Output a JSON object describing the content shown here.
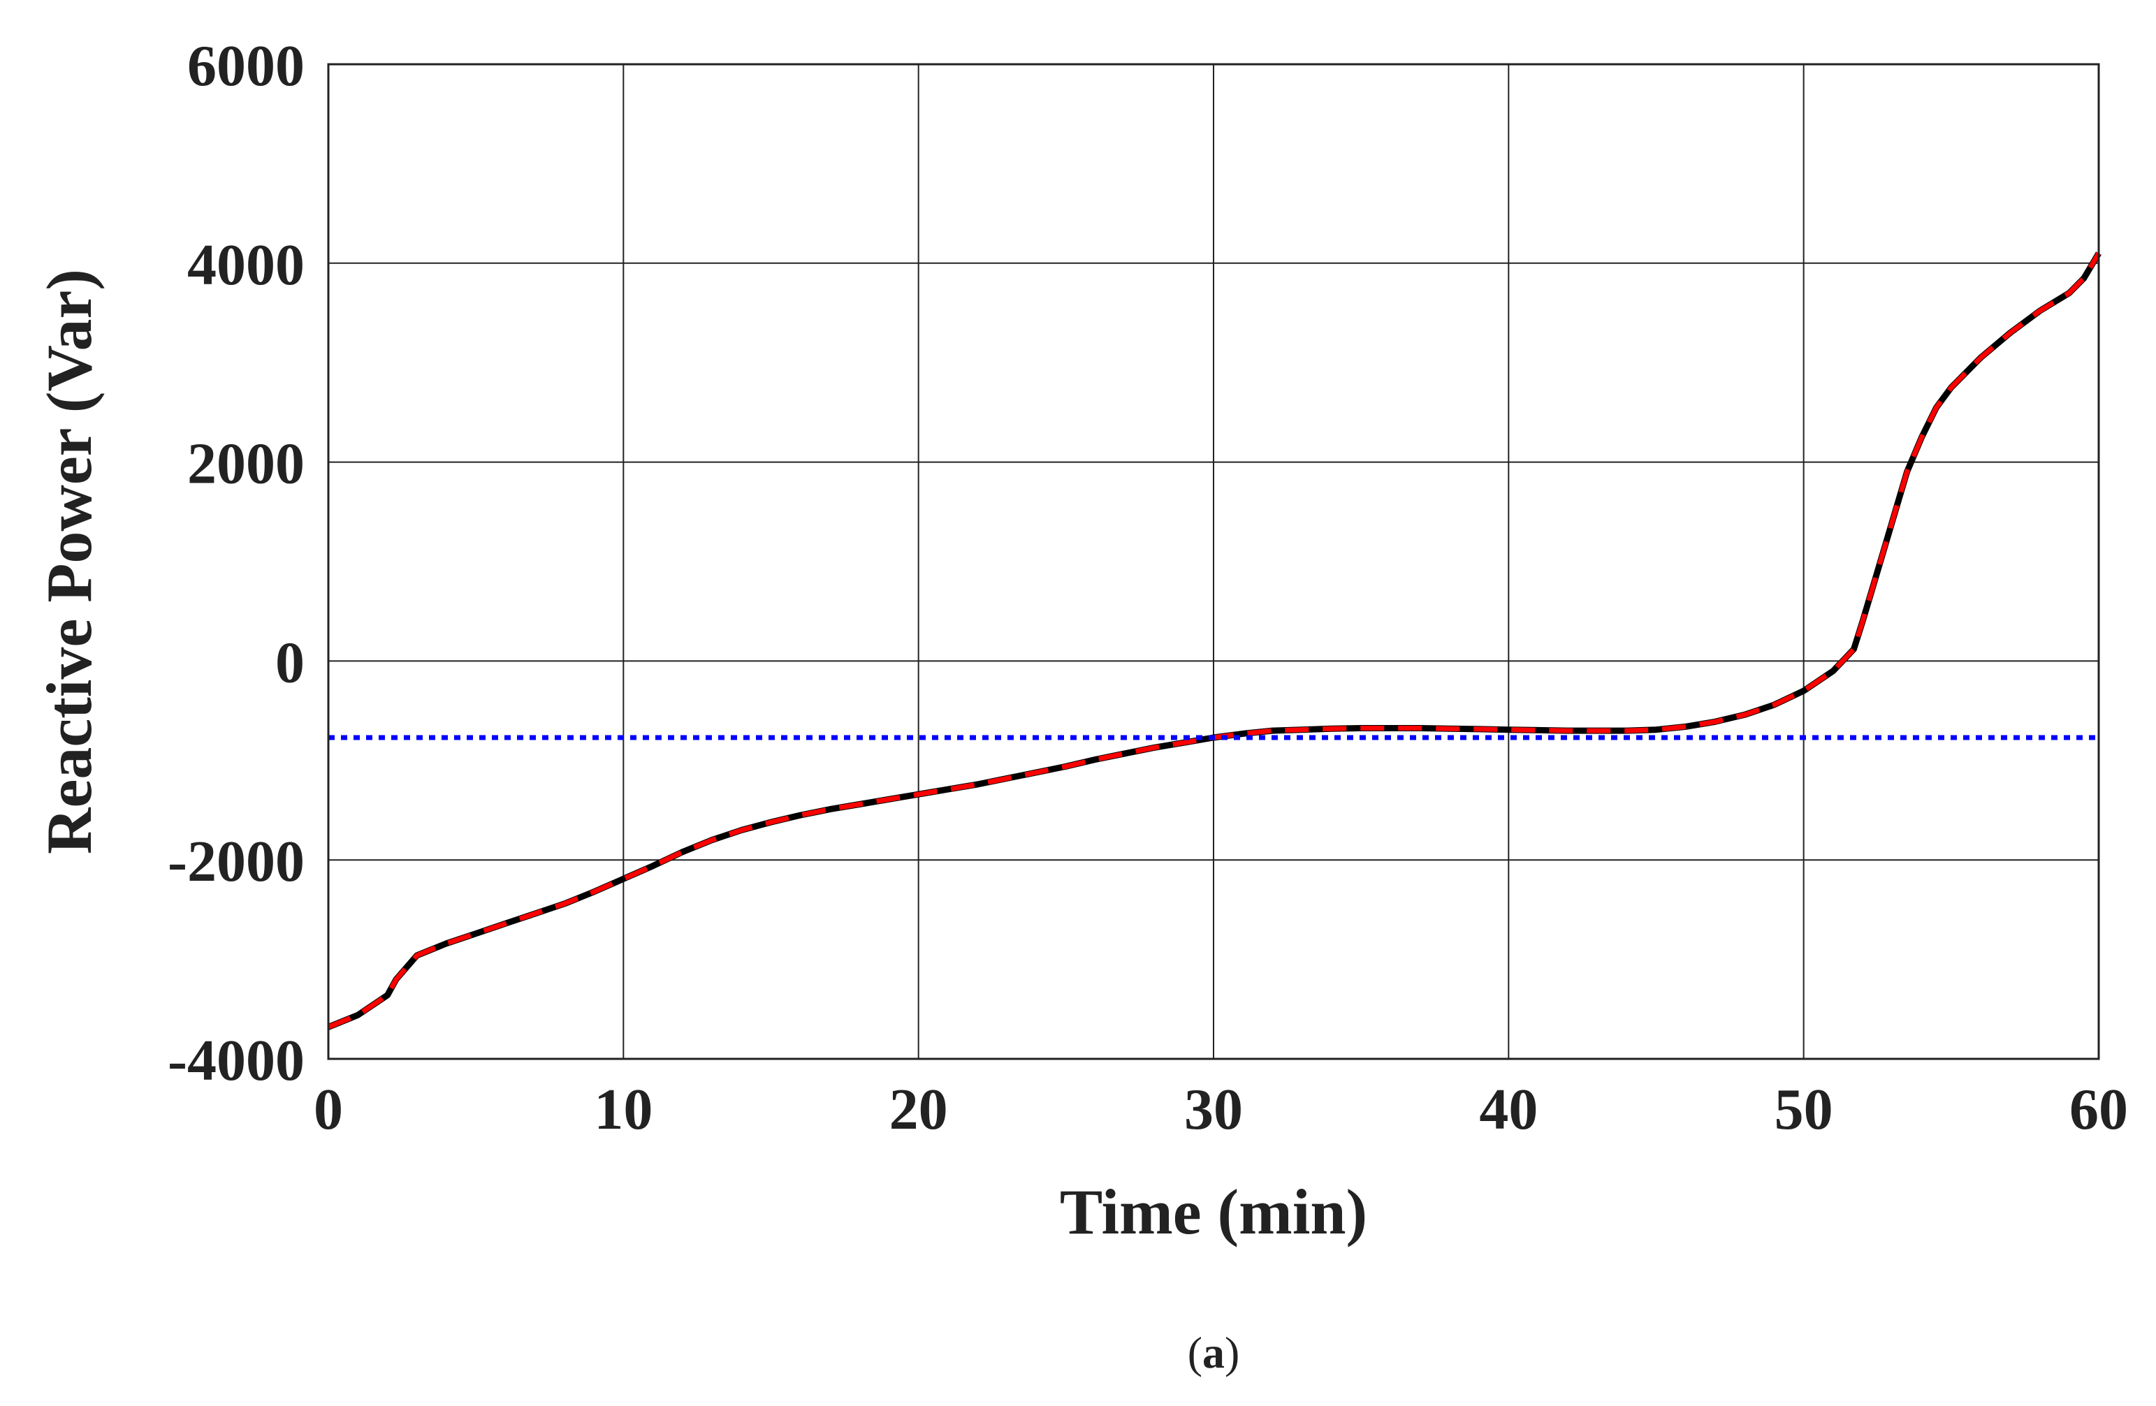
{
  "chart_data": {
    "type": "line",
    "xlabel": "Time (min)",
    "ylabel": "Reactive Power (Var)",
    "xlim": [
      0,
      60
    ],
    "ylim": [
      -4000,
      6000
    ],
    "x_ticks": [
      0,
      10,
      20,
      30,
      40,
      50,
      60
    ],
    "y_ticks": [
      -4000,
      -2000,
      0,
      2000,
      4000,
      6000
    ],
    "x_tick_labels": [
      "0",
      "10",
      "20",
      "30",
      "40",
      "50",
      "60"
    ],
    "y_tick_labels": [
      "-4000",
      "-2000",
      "0",
      "2000",
      "4000",
      "6000"
    ],
    "grid": true,
    "legend": "none",
    "caption": {
      "open": "(",
      "letter": "a",
      "close": ")"
    },
    "series": [
      {
        "color": "#000000",
        "style": "solid",
        "points": [
          [
            0,
            -3680
          ],
          [
            1,
            -3560
          ],
          [
            2,
            -3360
          ],
          [
            2.3,
            -3200
          ],
          [
            3,
            -2960
          ],
          [
            4,
            -2840
          ],
          [
            5,
            -2740
          ],
          [
            6,
            -2640
          ],
          [
            7,
            -2540
          ],
          [
            8,
            -2440
          ],
          [
            9,
            -2320
          ],
          [
            10,
            -2190
          ],
          [
            11,
            -2060
          ],
          [
            12,
            -1920
          ],
          [
            13,
            -1800
          ],
          [
            14,
            -1700
          ],
          [
            15,
            -1620
          ],
          [
            16,
            -1550
          ],
          [
            17,
            -1490
          ],
          [
            18,
            -1440
          ],
          [
            19,
            -1390
          ],
          [
            20,
            -1340
          ],
          [
            21,
            -1290
          ],
          [
            22,
            -1240
          ],
          [
            23,
            -1180
          ],
          [
            24,
            -1120
          ],
          [
            25,
            -1060
          ],
          [
            26,
            -990
          ],
          [
            27,
            -930
          ],
          [
            28,
            -870
          ],
          [
            29,
            -820
          ],
          [
            30,
            -770
          ],
          [
            31,
            -730
          ],
          [
            32,
            -700
          ],
          [
            33,
            -690
          ],
          [
            34,
            -680
          ],
          [
            35,
            -675
          ],
          [
            36,
            -675
          ],
          [
            37,
            -675
          ],
          [
            38,
            -680
          ],
          [
            39,
            -685
          ],
          [
            40,
            -690
          ],
          [
            41,
            -695
          ],
          [
            42,
            -700
          ],
          [
            43,
            -700
          ],
          [
            44,
            -700
          ],
          [
            45,
            -690
          ],
          [
            46,
            -660
          ],
          [
            47,
            -610
          ],
          [
            48,
            -540
          ],
          [
            49,
            -440
          ],
          [
            50,
            -300
          ],
          [
            51,
            -100
          ],
          [
            51.7,
            120
          ],
          [
            52,
            400
          ],
          [
            52.5,
            900
          ],
          [
            53,
            1400
          ],
          [
            53.5,
            1900
          ],
          [
            54,
            2250
          ],
          [
            54.5,
            2550
          ],
          [
            55,
            2750
          ],
          [
            56,
            3050
          ],
          [
            57,
            3300
          ],
          [
            58,
            3520
          ],
          [
            59,
            3700
          ],
          [
            59.5,
            3850
          ],
          [
            60,
            4100
          ]
        ]
      },
      {
        "color": "#ff0000",
        "style": "dashed",
        "points": [
          [
            0,
            -3680
          ],
          [
            1,
            -3560
          ],
          [
            2,
            -3360
          ],
          [
            2.3,
            -3200
          ],
          [
            3,
            -2960
          ],
          [
            4,
            -2840
          ],
          [
            5,
            -2740
          ],
          [
            6,
            -2640
          ],
          [
            7,
            -2540
          ],
          [
            8,
            -2440
          ],
          [
            9,
            -2320
          ],
          [
            10,
            -2190
          ],
          [
            11,
            -2060
          ],
          [
            12,
            -1920
          ],
          [
            13,
            -1800
          ],
          [
            14,
            -1700
          ],
          [
            15,
            -1620
          ],
          [
            16,
            -1550
          ],
          [
            17,
            -1490
          ],
          [
            18,
            -1440
          ],
          [
            19,
            -1390
          ],
          [
            20,
            -1340
          ],
          [
            21,
            -1290
          ],
          [
            22,
            -1240
          ],
          [
            23,
            -1180
          ],
          [
            24,
            -1120
          ],
          [
            25,
            -1060
          ],
          [
            26,
            -990
          ],
          [
            27,
            -930
          ],
          [
            28,
            -870
          ],
          [
            29,
            -820
          ],
          [
            30,
            -770
          ],
          [
            31,
            -730
          ],
          [
            32,
            -700
          ],
          [
            33,
            -690
          ],
          [
            34,
            -680
          ],
          [
            35,
            -675
          ],
          [
            36,
            -675
          ],
          [
            37,
            -675
          ],
          [
            38,
            -680
          ],
          [
            39,
            -685
          ],
          [
            40,
            -690
          ],
          [
            41,
            -695
          ],
          [
            42,
            -700
          ],
          [
            43,
            -700
          ],
          [
            44,
            -700
          ],
          [
            45,
            -690
          ],
          [
            46,
            -660
          ],
          [
            47,
            -610
          ],
          [
            48,
            -540
          ],
          [
            49,
            -440
          ],
          [
            50,
            -300
          ],
          [
            51,
            -100
          ],
          [
            51.7,
            120
          ],
          [
            52,
            400
          ],
          [
            52.5,
            900
          ],
          [
            53,
            1400
          ],
          [
            53.5,
            1900
          ],
          [
            54,
            2250
          ],
          [
            54.5,
            2550
          ],
          [
            55,
            2750
          ],
          [
            56,
            3050
          ],
          [
            57,
            3300
          ],
          [
            58,
            3520
          ],
          [
            59,
            3700
          ],
          [
            59.5,
            3850
          ],
          [
            60,
            4100
          ]
        ]
      },
      {
        "color": "#0000ff",
        "style": "dotted",
        "points": [
          [
            0,
            -770
          ],
          [
            60,
            -770
          ]
        ]
      }
    ]
  }
}
